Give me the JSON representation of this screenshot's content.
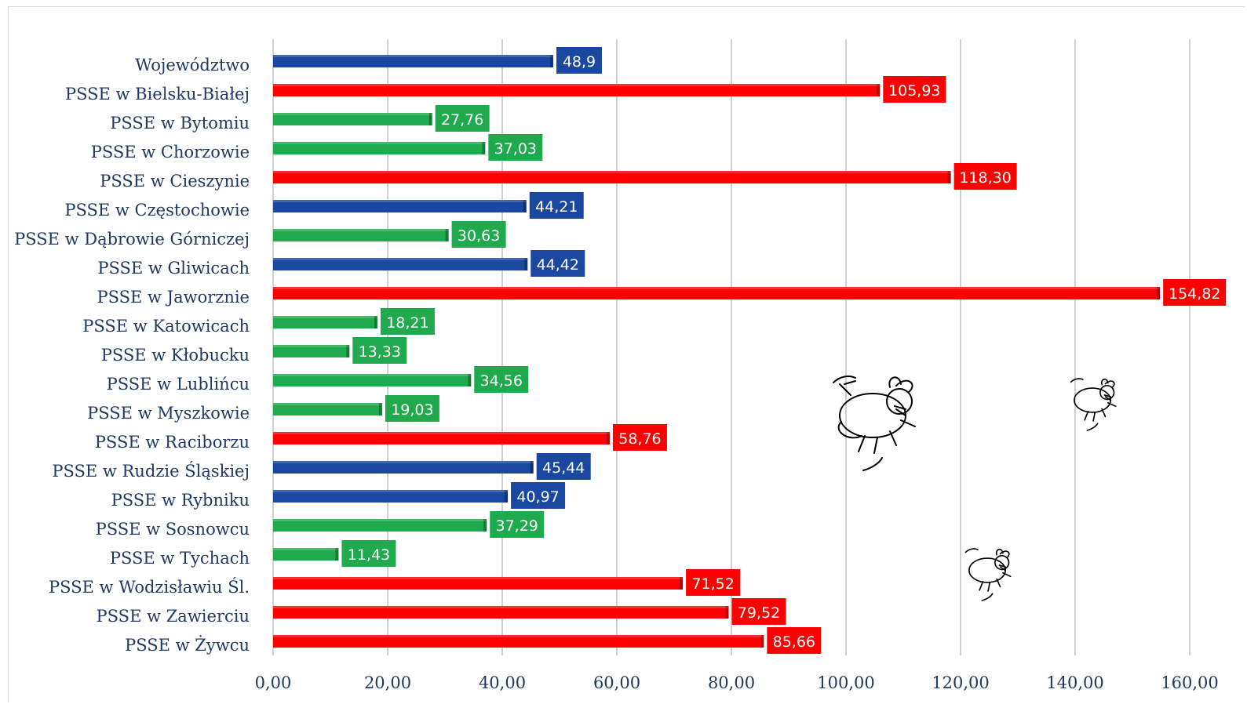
{
  "chart_data": {
    "type": "bar",
    "orientation": "horizontal",
    "categories": [
      "Województwo",
      "PSSE w Bielsku-Białej",
      "PSSE w Bytomiu",
      "PSSE w Chorzowie",
      "PSSE w Cieszynie",
      "PSSE w Częstochowie",
      "PSSE w Dąbrowie Górniczej",
      "PSSE w Gliwicach",
      "PSSE w Jaworznie",
      "PSSE w Katowicach",
      "PSSE w Kłobucku",
      "PSSE w Lublińcu",
      "PSSE w Myszkowie",
      "PSSE w Raciborzu",
      "PSSE w Rudzie Śląskiej",
      "PSSE w Rybniku",
      "PSSE w Sosnowcu",
      "PSSE w Tychach",
      "PSSE w Wodzisławiu Śl.",
      "PSSE w Zawierciu",
      "PSSE w Żywcu"
    ],
    "values": [
      48.9,
      105.93,
      27.76,
      37.03,
      118.3,
      44.21,
      30.63,
      44.42,
      154.82,
      18.21,
      13.33,
      34.56,
      19.03,
      58.76,
      45.44,
      40.97,
      37.29,
      11.43,
      71.52,
      79.52,
      85.66
    ],
    "value_labels": [
      "48,9",
      "105,93",
      "27,76",
      "37,03",
      "118,30",
      "44,21",
      "30,63",
      "44,42",
      "154,82",
      "18,21",
      "13,33",
      "34,56",
      "19,03",
      "58,76",
      "45,44",
      "40,97",
      "37,29",
      "11,43",
      "71,52",
      "79,52",
      "85,66"
    ],
    "bar_colors": [
      "blue",
      "red",
      "green",
      "green",
      "red",
      "blue",
      "green",
      "blue",
      "red",
      "green",
      "green",
      "green",
      "green",
      "red",
      "blue",
      "blue",
      "green",
      "green",
      "red",
      "red",
      "red"
    ],
    "colors": {
      "blue": "#1a47a0",
      "red": "#ff0000",
      "green": "#1faa4d"
    },
    "xlim": [
      0,
      160
    ],
    "x_ticks": [
      0,
      20,
      40,
      60,
      80,
      100,
      120,
      140,
      160
    ],
    "x_tick_labels": [
      "0,00",
      "20,00",
      "40,00",
      "60,00",
      "80,00",
      "100,00",
      "120,00",
      "140,00",
      "160,00"
    ],
    "title": "",
    "xlabel": "",
    "ylabel": "",
    "grid": "vertical",
    "legend": "none"
  },
  "decorations": [
    "fly-drawing",
    "fly-drawing",
    "fly-drawing"
  ]
}
